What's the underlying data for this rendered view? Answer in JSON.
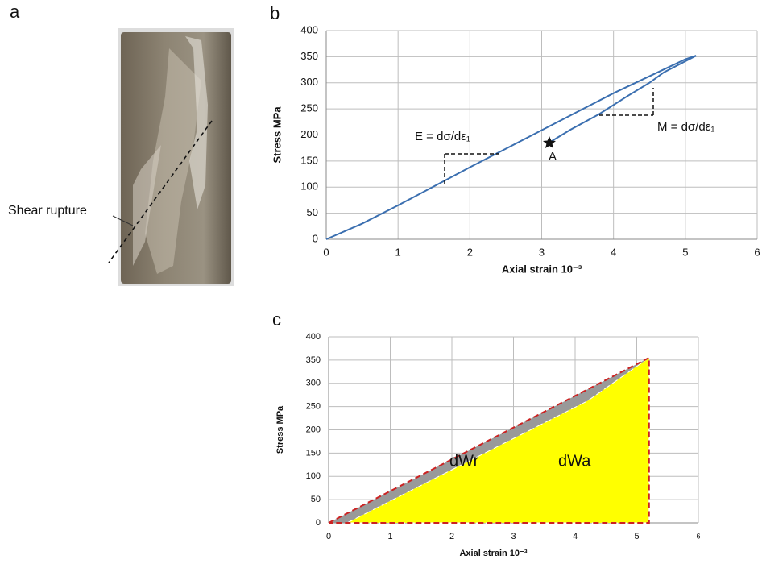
{
  "photo": {
    "panel": "a",
    "annotation": "Shear rupture"
  },
  "chart_data": [
    {
      "type": "line",
      "panel": "b",
      "xlabel": "Axial strain 10⁻³",
      "ylabel": "Stress MPa",
      "xlim": [
        0,
        6
      ],
      "ylim": [
        0,
        400
      ],
      "xticks": [
        0,
        1,
        2,
        3,
        4,
        5,
        6
      ],
      "yticks": [
        0,
        50,
        100,
        150,
        200,
        250,
        300,
        350,
        400
      ],
      "grid": true,
      "annotations": [
        "E = dσ/dε₁",
        "M = dσ/dε₁",
        "A"
      ],
      "series": [
        {
          "color": "#3b6fb0",
          "x": [
            0,
            0.5,
            1,
            2,
            3,
            4,
            5,
            5.15
          ],
          "values": [
            0,
            30,
            65,
            138,
            209,
            280,
            345,
            352
          ]
        },
        {
          "color": "#3b6fb0",
          "x": [
            5.15,
            4.7,
            4.5,
            4.2,
            3.8,
            3.4,
            3.1
          ],
          "values": [
            352,
            320,
            300,
            275,
            240,
            210,
            185
          ]
        }
      ]
    },
    {
      "type": "area",
      "panel": "c",
      "xlabel": "Axial strain 10⁻³",
      "ylabel": "Stress MPa",
      "xlim": [
        0,
        6
      ],
      "ylim": [
        0,
        400
      ],
      "xticks": [
        0,
        1,
        2,
        3,
        4,
        5,
        6
      ],
      "yticks": [
        0,
        50,
        100,
        150,
        200,
        250,
        300,
        350,
        400
      ],
      "grid": true,
      "annotations": [
        "dWr",
        "dWa"
      ],
      "series": [
        {
          "color": "#999999",
          "x": [
            0,
            5.2,
            4.2,
            0.3
          ],
          "values": [
            0,
            355,
            262,
            0
          ]
        },
        {
          "color": "#ffff00",
          "x": [
            0.3,
            4.2,
            5.2,
            5.2
          ],
          "values": [
            0,
            262,
            355,
            0
          ]
        },
        {
          "color": "#cc2222",
          "x": [
            0,
            5.2,
            5.2,
            0
          ],
          "values": [
            0,
            355,
            0,
            0
          ]
        }
      ]
    }
  ]
}
